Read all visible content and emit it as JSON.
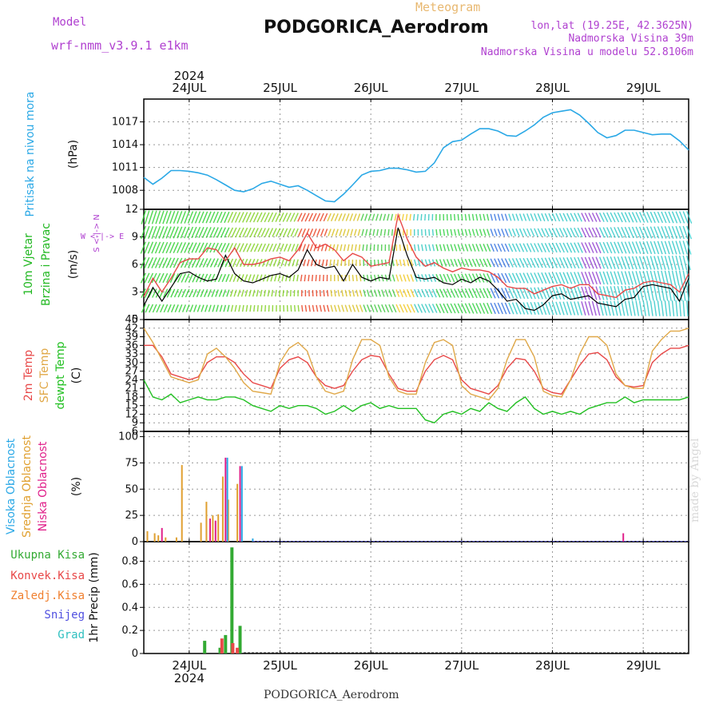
{
  "header": {
    "title": "PODGORICA_Aerodrom",
    "meteogram": "Meteogram",
    "model_label": "Model",
    "model_name": "wrf-nmm_v3.9.1 e1km",
    "lonlat": "lon,lat (19.25E, 42.3625N)",
    "elevation": "Nadmorska Visina 39m",
    "model_elevation": "Nadmorska Visina u modelu 52.8106m",
    "footer": "PODGORICA_Aerodrom",
    "watermark": "made by Angel"
  },
  "colors": {
    "pressure": "#2aa8e6",
    "wind_label": "#22b822",
    "temp_2m": "#e84848",
    "temp_sfc": "#e0a848",
    "dewpoint": "#22c022",
    "cloud_high": "#2aa8e6",
    "cloud_mid": "#e0a030",
    "cloud_low": "#e0208a",
    "rain_total": "#33aa33",
    "rain_conv": "#e84848",
    "rain_frozen": "#f08030",
    "snow": "#5050e0",
    "grad": "#30c0c0",
    "direction_label": "#b040d0"
  },
  "chart_data": [
    {
      "type": "line",
      "name": "pressure",
      "ylabel": "Pritisak na nivou mora",
      "unit": "(hPa)",
      "yticks": [
        1008,
        1011,
        1014,
        1017
      ],
      "ylim": [
        1005.5,
        1020
      ],
      "x": [
        23.5,
        23.6,
        23.7,
        23.8,
        23.9,
        24.0,
        24.1,
        24.2,
        24.3,
        24.4,
        24.5,
        24.6,
        24.7,
        24.8,
        24.9,
        25.0,
        25.1,
        25.2,
        25.3,
        25.4,
        25.5,
        25.6,
        25.7,
        25.8,
        25.9,
        26.0,
        26.1,
        26.2,
        26.3,
        26.4,
        26.5,
        26.6,
        26.7,
        26.8,
        26.9,
        27.0,
        27.1,
        27.2,
        27.3,
        27.4,
        27.5,
        27.6,
        27.7,
        27.8,
        27.9,
        28.0,
        28.1,
        28.2,
        28.3,
        28.4,
        28.5,
        28.6,
        28.7,
        28.8,
        28.9,
        29.0,
        29.1,
        29.2,
        29.3,
        29.4,
        29.5
      ],
      "values": [
        1009.7,
        1008.8,
        1009.6,
        1010.6,
        1010.6,
        1010.5,
        1010.3,
        1010.0,
        1009.4,
        1008.7,
        1008.0,
        1007.8,
        1008.2,
        1008.9,
        1009.2,
        1008.8,
        1008.4,
        1008.6,
        1008.0,
        1007.3,
        1006.6,
        1006.5,
        1007.5,
        1008.7,
        1010.0,
        1010.5,
        1010.6,
        1010.9,
        1010.9,
        1010.7,
        1010.4,
        1010.5,
        1011.6,
        1013.6,
        1014.4,
        1014.6,
        1015.4,
        1016.1,
        1016.1,
        1015.8,
        1015.2,
        1015.1,
        1015.8,
        1016.6,
        1017.6,
        1018.2,
        1018.4,
        1018.6,
        1017.9,
        1016.8,
        1015.6,
        1014.9,
        1015.2,
        1015.9,
        1015.9,
        1015.6,
        1015.3,
        1015.4,
        1015.4,
        1014.5,
        1013.3
      ]
    },
    {
      "type": "line",
      "name": "wind",
      "ylabel": "10m Vjetar",
      "ylabel2": "Brzina i Pravac",
      "unit": "(m/s)",
      "direction_legend": "W <-|-> E",
      "direction_legend2": "S <-|-> N",
      "yticks": [
        0,
        3,
        6,
        9,
        12
      ],
      "ylim": [
        0,
        12
      ],
      "x": [
        23.5,
        23.6,
        23.7,
        23.8,
        23.9,
        24.0,
        24.1,
        24.2,
        24.3,
        24.4,
        24.5,
        24.6,
        24.7,
        24.8,
        24.9,
        25.0,
        25.1,
        25.2,
        25.3,
        25.4,
        25.5,
        25.6,
        25.7,
        25.8,
        25.9,
        26.0,
        26.1,
        26.2,
        26.3,
        26.4,
        26.5,
        26.6,
        26.7,
        26.8,
        26.9,
        27.0,
        27.1,
        27.2,
        27.3,
        27.4,
        27.5,
        27.6,
        27.7,
        27.8,
        27.9,
        28.0,
        28.1,
        28.2,
        28.3,
        28.4,
        28.5,
        28.6,
        28.7,
        28.8,
        28.9,
        29.0,
        29.1,
        29.2,
        29.3,
        29.4,
        29.5
      ],
      "values": [
        1.5,
        3.5,
        2.0,
        3.5,
        5.0,
        5.2,
        4.6,
        4.2,
        4.4,
        7.0,
        5.0,
        4.2,
        4.0,
        4.4,
        4.8,
        5.0,
        4.6,
        5.4,
        7.6,
        6.0,
        5.6,
        5.8,
        4.2,
        6.0,
        4.6,
        4.2,
        4.6,
        4.4,
        10.0,
        7.0,
        4.6,
        4.4,
        4.6,
        4.0,
        3.8,
        4.4,
        4.0,
        4.6,
        4.2,
        3.2,
        2.0,
        2.2,
        1.2,
        1.0,
        1.6,
        2.6,
        2.8,
        2.2,
        2.4,
        2.6,
        1.8,
        1.6,
        1.4,
        2.2,
        2.4,
        3.6,
        3.8,
        3.6,
        3.4,
        2.0,
        4.5
      ],
      "gust": [
        2.5,
        4.5,
        3.0,
        4.5,
        6.2,
        6.6,
        6.6,
        7.8,
        7.6,
        6.4,
        7.8,
        6.0,
        6.0,
        6.2,
        6.6,
        6.8,
        6.4,
        7.6,
        9.4,
        7.8,
        8.2,
        7.6,
        6.4,
        7.2,
        6.8,
        5.8,
        6.0,
        6.2,
        11.4,
        8.8,
        6.8,
        5.8,
        6.2,
        5.6,
        5.2,
        5.6,
        5.4,
        5.4,
        5.2,
        4.6,
        3.6,
        3.4,
        3.4,
        2.8,
        3.2,
        3.6,
        3.8,
        3.4,
        3.8,
        3.8,
        2.8,
        2.6,
        2.4,
        3.2,
        3.4,
        4.0,
        4.2,
        4.0,
        3.8,
        3.0,
        5.0
      ]
    },
    {
      "type": "line",
      "name": "temperature",
      "ylabel_2m": "2m Temp",
      "ylabel_sfc": "SFC Temp",
      "ylabel_dew": "dewpt Temp",
      "unit": "(C)",
      "yticks": [
        6,
        9,
        12,
        15,
        18,
        21,
        24,
        27,
        30,
        33,
        36,
        39,
        42,
        45
      ],
      "ylim": [
        6,
        45
      ],
      "x": [
        23.5,
        23.6,
        23.7,
        23.8,
        23.9,
        24.0,
        24.1,
        24.2,
        24.3,
        24.4,
        24.5,
        24.6,
        24.7,
        24.8,
        24.9,
        25.0,
        25.1,
        25.2,
        25.3,
        25.4,
        25.5,
        25.6,
        25.7,
        25.8,
        25.9,
        26.0,
        26.1,
        26.2,
        26.3,
        26.4,
        26.5,
        26.6,
        26.7,
        26.8,
        26.9,
        27.0,
        27.1,
        27.2,
        27.3,
        27.4,
        27.5,
        27.6,
        27.7,
        27.8,
        27.9,
        28.0,
        28.1,
        28.2,
        28.3,
        28.4,
        28.5,
        28.6,
        28.7,
        28.8,
        28.9,
        29.0,
        29.1,
        29.2,
        29.3,
        29.4,
        29.5
      ],
      "series": [
        {
          "name": "2m Temp",
          "values": [
            36,
            36,
            32,
            26,
            25,
            24,
            25,
            30,
            32,
            32,
            30,
            26,
            23,
            22,
            21,
            28,
            31,
            32,
            30,
            25,
            22,
            21,
            22,
            27,
            31,
            32.5,
            32,
            26,
            21,
            20,
            20,
            27,
            31,
            32.5,
            31,
            24,
            21,
            20,
            19,
            22,
            28,
            31.5,
            31,
            27,
            21,
            19.5,
            19,
            24,
            29,
            33,
            33.5,
            31,
            25,
            22,
            21.5,
            22,
            30,
            33,
            35,
            35,
            36
          ]
        },
        {
          "name": "SFC Temp",
          "values": [
            42,
            37,
            31,
            25,
            24,
            23,
            24,
            33,
            35,
            32,
            28,
            23,
            20,
            19.5,
            19,
            30,
            35,
            37,
            34,
            25,
            20,
            19,
            20,
            31,
            38,
            38,
            36,
            25,
            20,
            19,
            19,
            30,
            37,
            38,
            36,
            22,
            19,
            18,
            17,
            21,
            31,
            38,
            38,
            32,
            20,
            18.5,
            18,
            24,
            33,
            39,
            39,
            36,
            26,
            22,
            21,
            21,
            34,
            38,
            41,
            41,
            42
          ]
        },
        {
          "name": "dewpt Temp",
          "values": [
            24,
            18,
            17,
            19,
            16,
            17,
            18,
            17,
            17,
            18,
            18,
            17,
            15,
            14,
            13,
            15,
            14,
            15,
            15,
            14,
            12,
            13,
            15,
            13,
            15,
            16,
            14,
            15,
            14,
            14,
            14,
            10,
            9,
            12,
            13,
            12,
            14,
            13,
            16,
            14,
            13,
            16,
            18,
            14,
            12,
            13,
            12,
            13,
            12,
            14,
            15,
            16,
            16,
            18,
            16,
            17,
            17,
            17,
            17,
            17,
            18
          ]
        }
      ]
    },
    {
      "type": "bar",
      "name": "clouds",
      "ylabel_high": "Visoka Oblacnost",
      "ylabel_mid": "Srednja Oblacnost",
      "ylabel_low": "Niska Oblacnost",
      "unit": "(%)",
      "yticks": [
        0,
        25,
        50,
        75,
        100
      ],
      "ylim": [
        0,
        105
      ],
      "series": [
        {
          "name": "Srednja Oblacnost",
          "x": [
            23.54,
            23.62,
            23.66,
            23.74,
            23.86,
            23.92,
            24.13,
            24.19,
            24.26,
            24.32,
            24.37,
            24.43,
            24.53
          ],
          "values": [
            10,
            8,
            6,
            4,
            4,
            73,
            18,
            38,
            25,
            26,
            62,
            40,
            55
          ]
        },
        {
          "name": "Niska Oblacnost",
          "x": [
            23.7,
            24.23,
            24.29,
            24.4,
            24.56,
            28.78
          ],
          "values": [
            13,
            22,
            20,
            80,
            72,
            8
          ]
        },
        {
          "name": "Visoka Oblacnost",
          "x": [
            24.42,
            24.58,
            24.7
          ],
          "values": [
            80,
            72,
            3
          ]
        }
      ]
    },
    {
      "type": "bar",
      "name": "precipitation",
      "legend": [
        "Ukupna Kisa",
        "Konvek.Kisa",
        "Zaledj.Kisa",
        "Snijeg",
        "Grad"
      ],
      "unit": "1hr Precip (mm)",
      "yticks": [
        0,
        0.2,
        0.4,
        0.6,
        0.8
      ],
      "yticklabels": [
        "0",
        "0.2",
        "0.4",
        "0.6",
        "0.8"
      ],
      "ylim": [
        0,
        0.97
      ],
      "series": [
        {
          "name": "Ukupna Kisa",
          "x": [
            24.17,
            24.34,
            24.4,
            24.47,
            24.56
          ],
          "values": [
            0.11,
            0.05,
            0.16,
            0.92,
            0.24
          ]
        },
        {
          "name": "Konvek.Kisa",
          "x": [
            24.36,
            24.48,
            24.53
          ],
          "values": [
            0.13,
            0.09,
            0.05
          ]
        }
      ]
    }
  ],
  "time_axis": {
    "xlim": [
      23.5,
      29.5
    ],
    "day_ticks": [
      24,
      25,
      26,
      27,
      28,
      29
    ],
    "day_labels": [
      "24JUL",
      "25JUL",
      "26JUL",
      "27JUL",
      "28JUL",
      "29JUL"
    ],
    "year": "2024"
  }
}
